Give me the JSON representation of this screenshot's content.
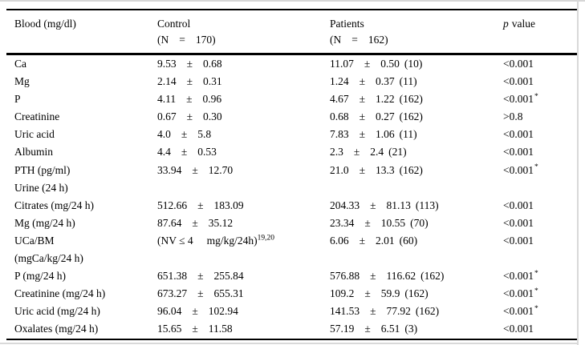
{
  "page": {
    "background": "#ffffff",
    "text_color": "#000000",
    "rule_color": "#000000",
    "scan_edge_color": "#d6d6d6"
  },
  "table": {
    "pm_sign": "±",
    "header": {
      "blood_label": "Blood (mg/dl)",
      "control_title": "Control",
      "control_n_open": "(N",
      "control_n_eq": "=",
      "control_n_close": "170)",
      "patients_title": "Patients",
      "patients_n_open": "(N",
      "patients_n_eq": "=",
      "patients_n_close": "162)",
      "p_italic": "p",
      "p_rest": "value"
    },
    "rows": [
      {
        "label": "Ca",
        "control": {
          "mean": "9.53",
          "sd": "0.68"
        },
        "patients": {
          "mean": "11.07",
          "sd": "0.50",
          "n": "(10)"
        },
        "p": "<0.001",
        "p_star": ""
      },
      {
        "label": "Mg",
        "control": {
          "mean": "2.14",
          "sd": "0.31"
        },
        "patients": {
          "mean": "1.24",
          "sd": "0.37",
          "n": "(11)"
        },
        "p": "<0.001",
        "p_star": ""
      },
      {
        "label": "P",
        "control": {
          "mean": "4.11",
          "sd": "0.96"
        },
        "patients": {
          "mean": "4.67",
          "sd": "1.22",
          "n": "(162)"
        },
        "p": "<0.001",
        "p_star": "*"
      },
      {
        "label": "Creatinine",
        "control": {
          "mean": "0.67",
          "sd": "0.30"
        },
        "patients": {
          "mean": "0.68",
          "sd": "0.27",
          "n": "(162)"
        },
        "p": ">0.8",
        "p_star": ""
      },
      {
        "label": "Uric acid",
        "control": {
          "mean": "4.0",
          "sd": "5.8"
        },
        "patients": {
          "mean": "7.83",
          "sd": "1.06",
          "n": "(11)"
        },
        "p": "<0.001",
        "p_star": ""
      },
      {
        "label": "Albumin",
        "control": {
          "mean": "4.4",
          "sd": "0.53"
        },
        "patients": {
          "mean": "2.3",
          "sd": "2.4",
          "n": "(21)"
        },
        "p": "<0.001",
        "p_star": ""
      },
      {
        "label": "PTH (pg/ml)",
        "control": {
          "mean": "33.94",
          "sd": "12.70"
        },
        "patients": {
          "mean": "21.0",
          "sd": "13.3",
          "n": "(162)"
        },
        "p": "<0.001",
        "p_star": "*"
      },
      {
        "label": "Urine (24 h)",
        "section": true
      },
      {
        "label": "Citrates (mg/24 h)",
        "control": {
          "mean": "512.66",
          "sd": "183.09"
        },
        "patients": {
          "mean": "204.33",
          "sd": "81.13",
          "n": "(113)"
        },
        "p": "<0.001",
        "p_star": ""
      },
      {
        "label": "Mg (mg/24 h)",
        "control": {
          "mean": "87.64",
          "sd": "35.12"
        },
        "patients": {
          "mean": "23.34",
          "sd": "10.55",
          "n": "(70)"
        },
        "p": "<0.001",
        "p_star": ""
      },
      {
        "label": "UCa/BM",
        "label2": "(mgCa/kg/24 h)",
        "control_note": {
          "open": "(NV ≤ 4",
          "unit": "mg/kg/24h)",
          "sup": "19,20"
        },
        "patients": {
          "mean": "6.06",
          "sd": "2.01",
          "n": "(60)"
        },
        "p": "<0.001",
        "p_star": ""
      },
      {
        "label": "P (mg/24 h)",
        "control": {
          "mean": "651.38",
          "sd": "255.84"
        },
        "patients": {
          "mean": "576.88",
          "sd": "116.62",
          "n": "(162)"
        },
        "p": "<0.001",
        "p_star": "*"
      },
      {
        "label": "Creatinine (mg/24 h)",
        "control": {
          "mean": "673.27",
          "sd": "655.31"
        },
        "patients": {
          "mean": "109.2",
          "sd": "59.9",
          "n": "(162)"
        },
        "p": "<0.001",
        "p_star": "*"
      },
      {
        "label": "Uric acid (mg/24 h)",
        "control": {
          "mean": "96.04",
          "sd": "102.94"
        },
        "patients": {
          "mean": "141.53",
          "sd": "77.92",
          "n": "(162)"
        },
        "p": "<0.001",
        "p_star": "*"
      },
      {
        "label": "Oxalates (mg/24 h)",
        "control": {
          "mean": "15.65",
          "sd": "11.58"
        },
        "patients": {
          "mean": "57.19",
          "sd": "6.51",
          "n": "(3)"
        },
        "p": "<0.001",
        "p_star": ""
      }
    ]
  }
}
